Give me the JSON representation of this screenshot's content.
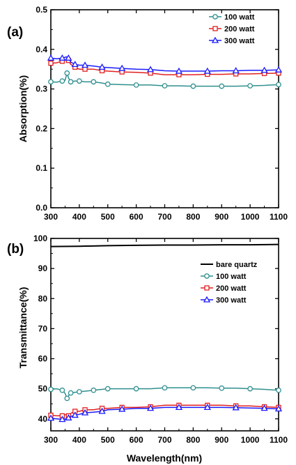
{
  "chart_data": [
    {
      "type": "line",
      "panel_label": "(a)",
      "xlabel": "",
      "ylabel": "Absorption(%)",
      "xlim": [
        300,
        1100
      ],
      "ylim": [
        0.0,
        0.5
      ],
      "xticks": [
        300,
        400,
        500,
        600,
        700,
        800,
        900,
        1000,
        1100
      ],
      "yticks": [
        "0.0",
        "0.1",
        "0.2",
        "0.3",
        "0.4",
        "0.5"
      ],
      "legend_position": "top-right",
      "series": [
        {
          "name": "100 watt",
          "color": "#2f8f8f",
          "marker": "circle",
          "x": [
            300,
            320,
            340,
            350,
            357,
            362,
            370,
            385,
            400,
            420,
            450,
            480,
            500,
            550,
            600,
            650,
            700,
            750,
            800,
            850,
            900,
            950,
            1000,
            1050,
            1100
          ],
          "y": [
            0.318,
            0.317,
            0.32,
            0.322,
            0.34,
            0.328,
            0.318,
            0.32,
            0.32,
            0.318,
            0.318,
            0.315,
            0.312,
            0.311,
            0.31,
            0.31,
            0.308,
            0.308,
            0.307,
            0.307,
            0.307,
            0.307,
            0.308,
            0.309,
            0.311
          ]
        },
        {
          "name": "200 watt",
          "color": "#e02020",
          "marker": "square",
          "x": [
            300,
            320,
            340,
            355,
            362,
            370,
            385,
            400,
            420,
            450,
            480,
            500,
            550,
            600,
            650,
            700,
            750,
            800,
            850,
            900,
            950,
            1000,
            1050,
            1100
          ],
          "y": [
            0.365,
            0.366,
            0.37,
            0.374,
            0.372,
            0.362,
            0.355,
            0.35,
            0.35,
            0.35,
            0.346,
            0.345,
            0.343,
            0.342,
            0.34,
            0.336,
            0.336,
            0.336,
            0.337,
            0.337,
            0.338,
            0.338,
            0.339,
            0.34
          ]
        },
        {
          "name": "300 watt",
          "color": "#1a1aff",
          "marker": "triangle",
          "x": [
            300,
            320,
            340,
            355,
            362,
            370,
            385,
            400,
            420,
            450,
            480,
            500,
            550,
            600,
            650,
            700,
            750,
            800,
            850,
            900,
            950,
            1000,
            1050,
            1100
          ],
          "y": [
            0.378,
            0.376,
            0.378,
            0.381,
            0.378,
            0.368,
            0.362,
            0.36,
            0.36,
            0.358,
            0.355,
            0.354,
            0.352,
            0.35,
            0.349,
            0.346,
            0.345,
            0.345,
            0.345,
            0.346,
            0.346,
            0.347,
            0.347,
            0.348
          ]
        }
      ]
    },
    {
      "type": "line",
      "panel_label": "(b)",
      "xlabel": "Wavelength(nm)",
      "ylabel": "Transmittance(%)",
      "xlim": [
        300,
        1100
      ],
      "ylim": [
        36,
        100
      ],
      "xticks": [
        300,
        400,
        500,
        600,
        700,
        800,
        900,
        1000,
        1100
      ],
      "yticks": [
        "40",
        "50",
        "60",
        "70",
        "80",
        "90",
        "100"
      ],
      "legend_position": "top-right",
      "series": [
        {
          "name": "bare quartz",
          "color": "#000000",
          "marker": "none",
          "x": [
            300,
            400,
            500,
            600,
            700,
            800,
            900,
            1000,
            1100
          ],
          "y": [
            97.3,
            97.4,
            97.6,
            97.7,
            97.8,
            97.8,
            97.9,
            97.9,
            98.0
          ]
        },
        {
          "name": "100 watt",
          "color": "#2f8f8f",
          "marker": "circle",
          "x": [
            300,
            320,
            340,
            350,
            357,
            363,
            370,
            385,
            400,
            420,
            450,
            480,
            500,
            550,
            600,
            650,
            700,
            750,
            800,
            850,
            900,
            950,
            1000,
            1050,
            1100
          ],
          "y": [
            49.8,
            50.0,
            49.5,
            48.5,
            46.8,
            47.8,
            48.6,
            48.8,
            49.0,
            49.2,
            49.5,
            49.8,
            50.0,
            50.0,
            50.0,
            50.0,
            50.3,
            50.3,
            50.3,
            50.3,
            50.2,
            50.2,
            50.0,
            49.8,
            49.5
          ]
        },
        {
          "name": "200 watt",
          "color": "#e02020",
          "marker": "square",
          "x": [
            300,
            320,
            340,
            355,
            362,
            370,
            385,
            400,
            420,
            450,
            480,
            500,
            550,
            600,
            650,
            700,
            750,
            800,
            850,
            900,
            950,
            1000,
            1050,
            1100
          ],
          "y": [
            41.2,
            41.0,
            41.0,
            41.5,
            41.0,
            41.8,
            42.5,
            42.5,
            43.0,
            43.0,
            43.5,
            43.5,
            43.8,
            43.8,
            44.0,
            44.5,
            44.5,
            44.5,
            44.5,
            44.5,
            44.3,
            44.3,
            44.0,
            43.8
          ]
        },
        {
          "name": "300 watt",
          "color": "#1a1aff",
          "marker": "triangle",
          "x": [
            300,
            320,
            340,
            355,
            362,
            370,
            385,
            400,
            420,
            450,
            480,
            500,
            550,
            600,
            650,
            700,
            750,
            800,
            850,
            900,
            950,
            1000,
            1050,
            1100
          ],
          "y": [
            40.2,
            40.0,
            39.8,
            40.0,
            40.3,
            40.8,
            41.2,
            41.5,
            42.0,
            42.2,
            42.5,
            43.0,
            43.2,
            43.5,
            43.5,
            43.8,
            43.8,
            43.8,
            43.8,
            43.8,
            43.7,
            43.6,
            43.5,
            43.3
          ]
        }
      ]
    }
  ]
}
